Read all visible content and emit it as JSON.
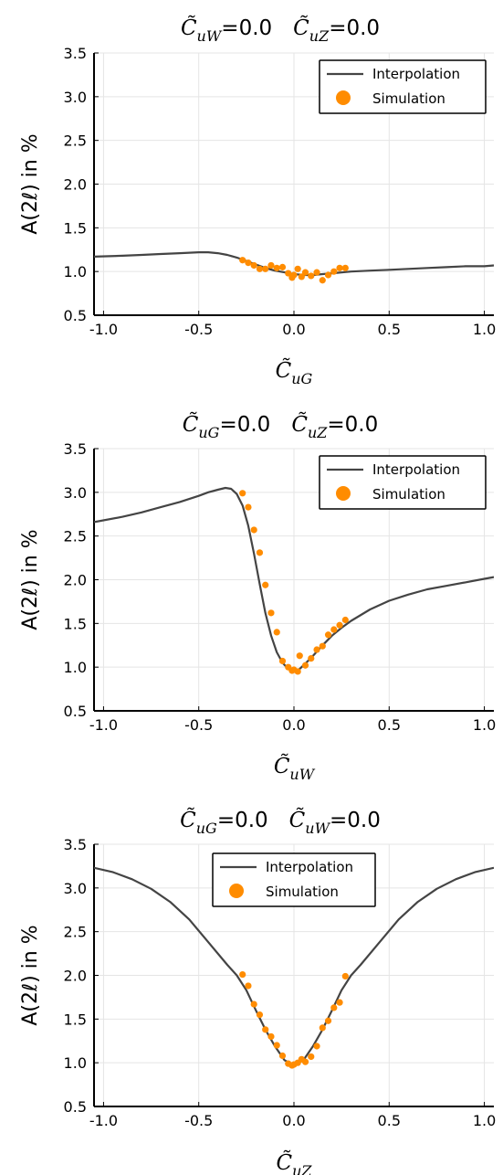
{
  "colors": {
    "interpolation": "#444444",
    "simulation": "#ff8c00"
  },
  "chart_data": [
    {
      "type": "line",
      "title_parts": [
        {
          "var": "C",
          "sub": "uW",
          "val": "=0.0"
        },
        {
          "var": "C",
          "sub": "uZ",
          "val": "=0.0"
        }
      ],
      "xlabel": {
        "var": "C",
        "sub": "uG"
      },
      "ylabel": "A(2ℓ) in %",
      "xlim": [
        -1.05,
        1.05
      ],
      "ylim": [
        0.5,
        3.5
      ],
      "xticks": [
        -1.0,
        -0.5,
        0.0,
        0.5,
        1.0
      ],
      "xtick_labels": [
        "-1.0",
        "-0.5",
        "0.0",
        "0.5",
        "1.0"
      ],
      "yticks": [
        0.5,
        1.0,
        1.5,
        2.0,
        2.5,
        3.0,
        3.5
      ],
      "ytick_labels": [
        "0.5",
        "1.0",
        "1.5",
        "2.0",
        "2.5",
        "3.0",
        "3.5"
      ],
      "grid": true,
      "legend_position": "top-right",
      "series": [
        {
          "name": "Interpolation",
          "kind": "line",
          "x": [
            -1.05,
            -0.9,
            -0.8,
            -0.7,
            -0.6,
            -0.5,
            -0.45,
            -0.4,
            -0.35,
            -0.3,
            -0.25,
            -0.2,
            -0.15,
            -0.1,
            -0.05,
            0.0,
            0.05,
            0.1,
            0.15,
            0.2,
            0.3,
            0.4,
            0.5,
            0.6,
            0.7,
            0.8,
            0.9,
            1.0,
            1.05
          ],
          "y": [
            1.17,
            1.18,
            1.19,
            1.2,
            1.21,
            1.22,
            1.22,
            1.21,
            1.19,
            1.16,
            1.12,
            1.08,
            1.04,
            1.01,
            0.99,
            0.97,
            0.96,
            0.96,
            0.97,
            0.98,
            1.0,
            1.01,
            1.02,
            1.03,
            1.04,
            1.05,
            1.06,
            1.06,
            1.07
          ]
        },
        {
          "name": "Simulation",
          "kind": "scatter",
          "x": [
            -0.27,
            -0.24,
            -0.21,
            -0.18,
            -0.15,
            -0.12,
            -0.09,
            -0.06,
            -0.03,
            -0.01,
            0.0,
            0.02,
            0.04,
            0.06,
            0.09,
            0.12,
            0.15,
            0.18,
            0.21,
            0.24,
            0.27
          ],
          "y": [
            1.13,
            1.1,
            1.07,
            1.03,
            1.03,
            1.07,
            1.04,
            1.05,
            0.98,
            0.93,
            0.96,
            1.03,
            0.94,
            0.99,
            0.95,
            0.99,
            0.9,
            0.96,
            1.0,
            1.04,
            1.04
          ]
        }
      ]
    },
    {
      "type": "line",
      "title_parts": [
        {
          "var": "C",
          "sub": "uG",
          "val": "=0.0"
        },
        {
          "var": "C",
          "sub": "uZ",
          "val": "=0.0"
        }
      ],
      "xlabel": {
        "var": "C",
        "sub": "uW"
      },
      "ylabel": "A(2ℓ) in %",
      "xlim": [
        -1.05,
        1.05
      ],
      "ylim": [
        0.5,
        3.5
      ],
      "xticks": [
        -1.0,
        -0.5,
        0.0,
        0.5,
        1.0
      ],
      "xtick_labels": [
        "-1.0",
        "-0.5",
        "0.0",
        "0.5",
        "1.0"
      ],
      "yticks": [
        0.5,
        1.0,
        1.5,
        2.0,
        2.5,
        3.0,
        3.5
      ],
      "ytick_labels": [
        "0.5",
        "1.0",
        "1.5",
        "2.0",
        "2.5",
        "3.0",
        "3.5"
      ],
      "grid": true,
      "legend_position": "top-right",
      "series": [
        {
          "name": "Interpolation",
          "kind": "line",
          "x": [
            -1.05,
            -0.9,
            -0.8,
            -0.7,
            -0.6,
            -0.5,
            -0.45,
            -0.4,
            -0.36,
            -0.33,
            -0.3,
            -0.27,
            -0.24,
            -0.21,
            -0.18,
            -0.15,
            -0.12,
            -0.09,
            -0.06,
            -0.03,
            0.0,
            0.03,
            0.06,
            0.1,
            0.15,
            0.2,
            0.25,
            0.3,
            0.4,
            0.5,
            0.6,
            0.7,
            0.8,
            0.9,
            1.0,
            1.05
          ],
          "y": [
            2.66,
            2.72,
            2.77,
            2.83,
            2.89,
            2.96,
            3.0,
            3.03,
            3.05,
            3.04,
            2.98,
            2.85,
            2.62,
            2.3,
            1.95,
            1.62,
            1.36,
            1.17,
            1.05,
            0.98,
            0.95,
            0.98,
            1.04,
            1.13,
            1.25,
            1.36,
            1.45,
            1.53,
            1.66,
            1.76,
            1.83,
            1.89,
            1.93,
            1.97,
            2.01,
            2.03
          ]
        },
        {
          "name": "Simulation",
          "kind": "scatter",
          "x": [
            -0.27,
            -0.24,
            -0.21,
            -0.18,
            -0.15,
            -0.12,
            -0.09,
            -0.06,
            -0.03,
            -0.01,
            0.0,
            0.02,
            0.03,
            0.06,
            0.09,
            0.12,
            0.15,
            0.18,
            0.21,
            0.24,
            0.27
          ],
          "y": [
            2.99,
            2.83,
            2.57,
            2.31,
            1.94,
            1.62,
            1.4,
            1.07,
            1.0,
            0.96,
            0.97,
            0.95,
            1.13,
            1.02,
            1.1,
            1.2,
            1.24,
            1.37,
            1.43,
            1.48,
            1.54
          ]
        }
      ]
    },
    {
      "type": "line",
      "title_parts": [
        {
          "var": "C",
          "sub": "uG",
          "val": "=0.0"
        },
        {
          "var": "C",
          "sub": "uW",
          "val": "=0.0"
        }
      ],
      "xlabel": {
        "var": "C",
        "sub": "uZ"
      },
      "ylabel": "A(2ℓ) in %",
      "xlim": [
        -1.05,
        1.05
      ],
      "ylim": [
        0.5,
        3.5
      ],
      "xticks": [
        -1.0,
        -0.5,
        0.0,
        0.5,
        1.0
      ],
      "xtick_labels": [
        "-1.0",
        "-0.5",
        "0.0",
        "0.5",
        "1.0"
      ],
      "yticks": [
        0.5,
        1.0,
        1.5,
        2.0,
        2.5,
        3.0,
        3.5
      ],
      "ytick_labels": [
        "0.5",
        "1.0",
        "1.5",
        "2.0",
        "2.5",
        "3.0",
        "3.5"
      ],
      "grid": true,
      "legend_position": "top-center",
      "series": [
        {
          "name": "Interpolation",
          "kind": "line",
          "x": [
            -1.05,
            -0.95,
            -0.85,
            -0.75,
            -0.65,
            -0.55,
            -0.45,
            -0.35,
            -0.3,
            -0.25,
            -0.2,
            -0.15,
            -0.1,
            -0.05,
            0.0,
            0.05,
            0.1,
            0.15,
            0.2,
            0.25,
            0.3,
            0.35,
            0.45,
            0.55,
            0.65,
            0.75,
            0.85,
            0.95,
            1.05
          ],
          "y": [
            3.23,
            3.18,
            3.1,
            2.99,
            2.84,
            2.64,
            2.38,
            2.12,
            2.0,
            1.83,
            1.6,
            1.38,
            1.19,
            1.03,
            0.97,
            1.03,
            1.19,
            1.38,
            1.6,
            1.83,
            2.0,
            2.12,
            2.38,
            2.64,
            2.84,
            2.99,
            3.1,
            3.18,
            3.23
          ]
        },
        {
          "name": "Simulation",
          "kind": "scatter",
          "x": [
            -0.27,
            -0.24,
            -0.21,
            -0.18,
            -0.15,
            -0.12,
            -0.09,
            -0.06,
            -0.03,
            -0.01,
            0.0,
            0.02,
            0.04,
            0.06,
            0.09,
            0.12,
            0.15,
            0.18,
            0.21,
            0.24,
            0.27
          ],
          "y": [
            2.01,
            1.88,
            1.67,
            1.55,
            1.38,
            1.3,
            1.2,
            1.08,
            0.99,
            0.97,
            0.98,
            1.0,
            1.04,
            1.01,
            1.07,
            1.19,
            1.4,
            1.48,
            1.63,
            1.69,
            1.99
          ]
        }
      ]
    }
  ]
}
